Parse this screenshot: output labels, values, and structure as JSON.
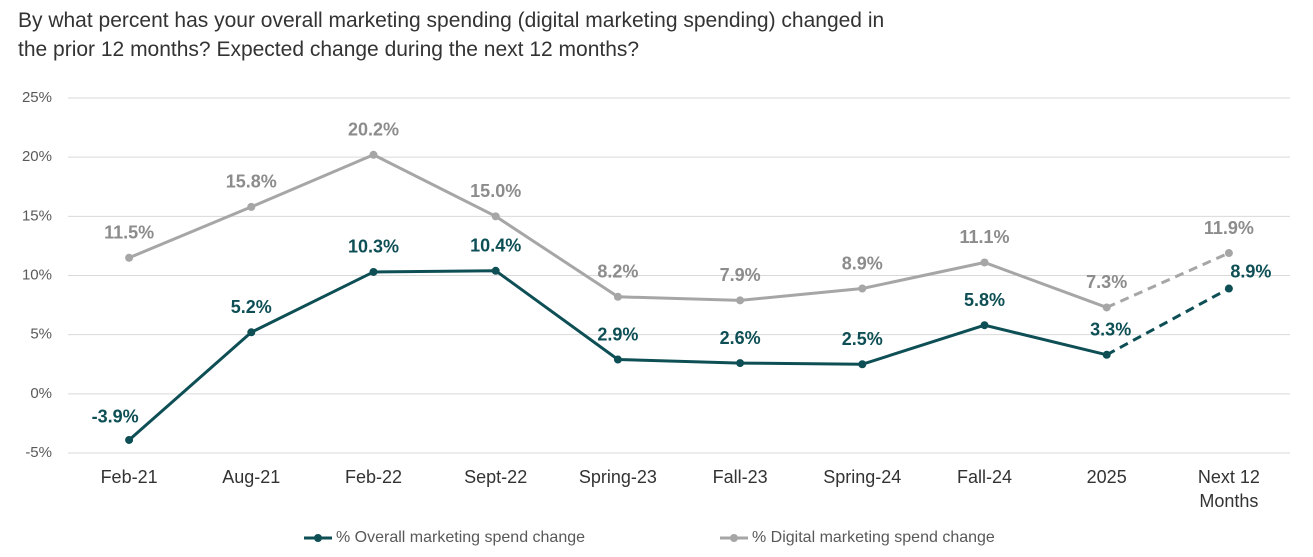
{
  "chart_data": {
    "type": "line",
    "title": "By what percent has your overall marketing spending (digital marketing spending) changed in the prior 12 months? Expected change during the next 12 months?",
    "categories": [
      "Feb-21",
      "Aug-21",
      "Feb-22",
      "Sept-22",
      "Spring-23",
      "Fall-23",
      "Spring-24",
      "Fall-24",
      "2025",
      "Next 12 Months"
    ],
    "series": [
      {
        "name": "% Overall marketing spend change",
        "color": "#0d4f55",
        "values": [
          -3.9,
          5.2,
          10.3,
          10.4,
          2.9,
          2.6,
          2.5,
          5.8,
          3.3,
          8.9
        ],
        "value_labels": [
          "-3.9%",
          "5.2%",
          "10.3%",
          "10.4%",
          "2.9%",
          "2.6%",
          "2.5%",
          "5.8%",
          "3.3%",
          "8.9%"
        ]
      },
      {
        "name": "% Digital marketing spend change",
        "color": "#a6a6a6",
        "values": [
          11.5,
          15.8,
          20.2,
          15.0,
          8.2,
          7.9,
          8.9,
          11.1,
          7.3,
          11.9
        ],
        "value_labels": [
          "11.5%",
          "15.8%",
          "20.2%",
          "15.0%",
          "8.2%",
          "7.9%",
          "8.9%",
          "11.1%",
          "7.3%",
          "11.9%"
        ]
      }
    ],
    "ylim": [
      -5,
      25
    ],
    "yticks": [
      {
        "value": -5,
        "label": "-5%"
      },
      {
        "value": 0,
        "label": "0%"
      },
      {
        "value": 5,
        "label": "5%"
      },
      {
        "value": 10,
        "label": "10%"
      },
      {
        "value": 15,
        "label": "15%"
      },
      {
        "value": 20,
        "label": "20%"
      },
      {
        "value": 25,
        "label": "25%"
      }
    ],
    "grid": true,
    "dash_from_index": 8,
    "legend": "bottom"
  }
}
